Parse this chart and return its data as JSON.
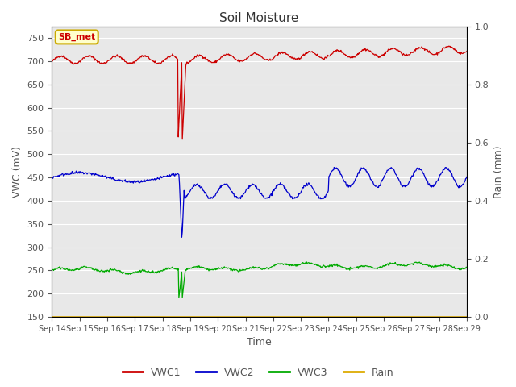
{
  "title": "Soil Moisture",
  "xlabel": "Time",
  "ylabel_left": "VWC (mV)",
  "ylabel_right": "Rain (mm)",
  "annotation_text": "SB_met",
  "annotation_color": "#cc0000",
  "annotation_bg": "#ffffcc",
  "annotation_border": "#ccaa00",
  "ylim_left": [
    150,
    775
  ],
  "ylim_right": [
    0.0,
    1.0
  ],
  "yticks_left": [
    150,
    200,
    250,
    300,
    350,
    400,
    450,
    500,
    550,
    600,
    650,
    700,
    750
  ],
  "yticks_right": [
    0.0,
    0.2,
    0.4,
    0.6,
    0.8,
    1.0
  ],
  "xtick_labels": [
    "Sep 14",
    "Sep 15",
    "Sep 16",
    "Sep 17",
    "Sep 18",
    "Sep 19",
    "Sep 20",
    "Sep 21",
    "Sep 22",
    "Sep 23",
    "Sep 24",
    "Sep 25",
    "Sep 26",
    "Sep 27",
    "Sep 28",
    "Sep 29"
  ],
  "colors": {
    "VWC1": "#cc0000",
    "VWC2": "#0000cc",
    "VWC3": "#00aa00",
    "Rain": "#ddaa00"
  },
  "bg_color": "#e8e8e8",
  "fig_bg": "#ffffff",
  "grid_color": "#ffffff",
  "tick_color": "#555555",
  "label_color": "#555555"
}
